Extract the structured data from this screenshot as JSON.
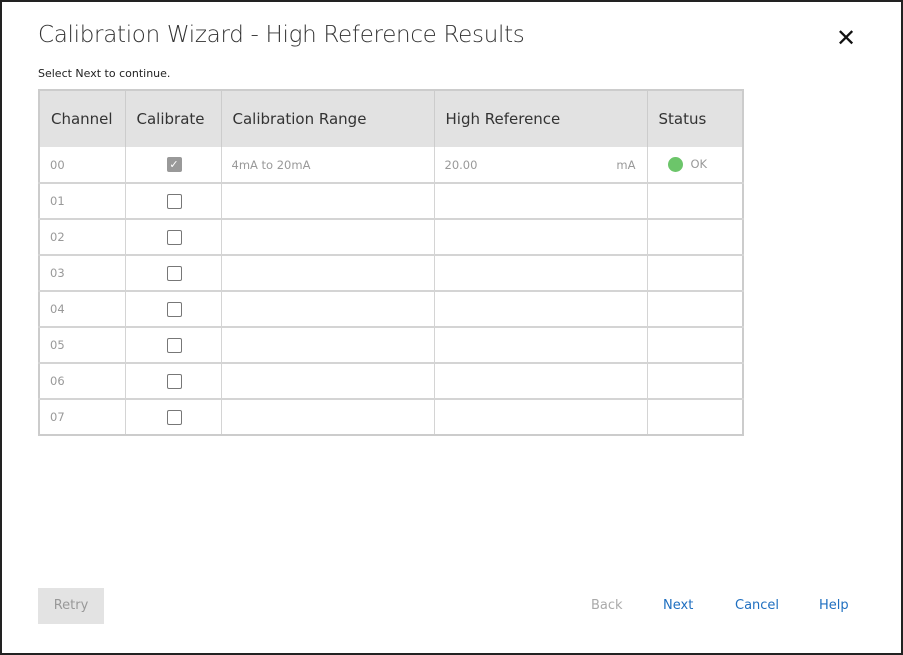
{
  "dialog": {
    "title": "Calibration Wizard -  High Reference Results",
    "instruction": "Select Next to continue.",
    "close_icon": "close-icon"
  },
  "table": {
    "headers": [
      "Channel",
      "Calibrate",
      "Calibration Range",
      "High Reference",
      "Status"
    ],
    "rows": [
      {
        "channel": "00",
        "calibrate": true,
        "range": "4mA to 20mA",
        "high_reference": "20.00",
        "unit": "mA",
        "status": "OK",
        "status_color": "#6cc56a"
      },
      {
        "channel": "01",
        "calibrate": false
      },
      {
        "channel": "02",
        "calibrate": false
      },
      {
        "channel": "03",
        "calibrate": false
      },
      {
        "channel": "04",
        "calibrate": false
      },
      {
        "channel": "05",
        "calibrate": false
      },
      {
        "channel": "06",
        "calibrate": false
      },
      {
        "channel": "07",
        "calibrate": false
      }
    ]
  },
  "buttons": {
    "retry": "Retry",
    "back": "Back",
    "next": "Next",
    "cancel": "Cancel",
    "help": "Help"
  }
}
